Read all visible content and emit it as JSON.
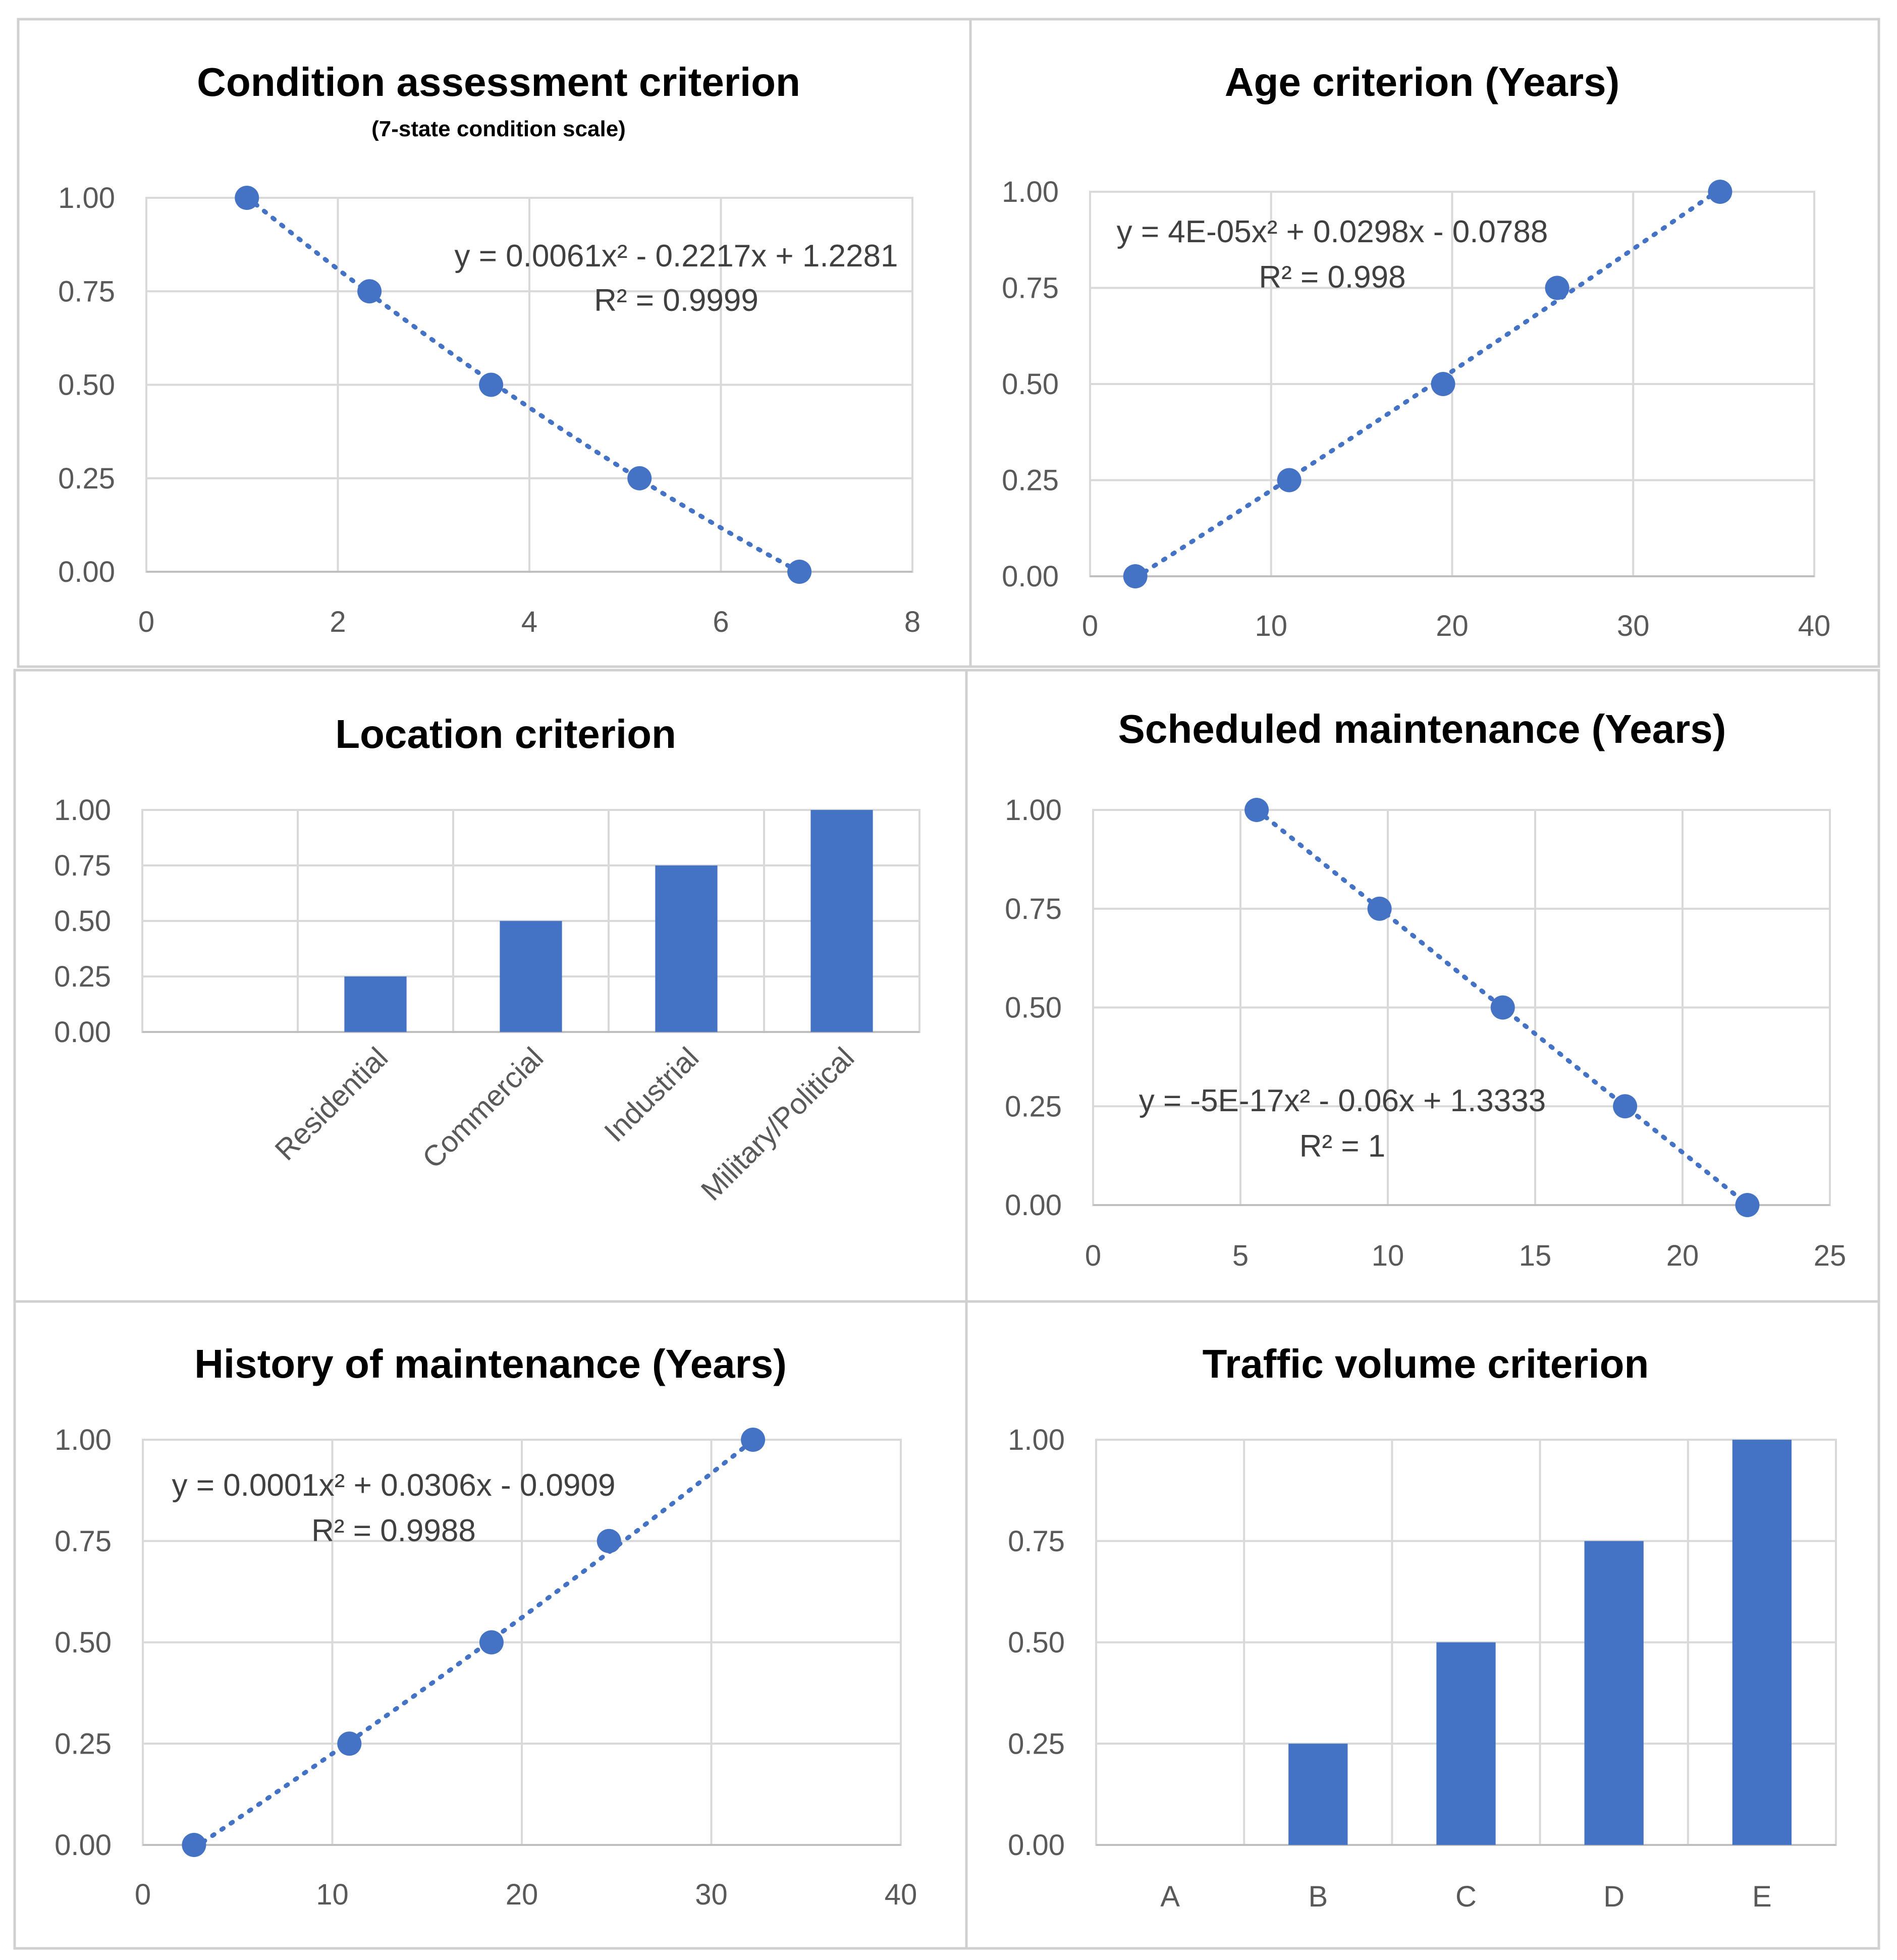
{
  "colors": {
    "series": "#4472c4",
    "grid": "#d9d9d9",
    "text": "#595959",
    "equation": "#404040"
  },
  "chart_data": [
    {
      "id": "condition",
      "type": "scatter",
      "title": "Condition assessment criterion",
      "subtitle": "(7-state condition scale)",
      "x": [
        1.05,
        2.33,
        3.6,
        5.15,
        6.82
      ],
      "y": [
        1.0,
        0.75,
        0.5,
        0.25,
        0.0
      ],
      "xlim": [
        0,
        8
      ],
      "ylim": [
        0,
        1
      ],
      "xticks": [
        "0",
        "2",
        "4",
        "6",
        "8"
      ],
      "yticks": [
        "0.00",
        "0.25",
        "0.50",
        "0.75",
        "1.00"
      ],
      "trendline": {
        "type": "polynomial",
        "coef": [
          0.0061,
          -0.2217,
          1.2281
        ]
      },
      "equation": "y = 0.0061x² - 0.2217x + 1.2281",
      "r2": "R² = 0.9999",
      "grid": true
    },
    {
      "id": "age",
      "type": "scatter",
      "title": "Age criterion (Years)",
      "x": [
        2.5,
        11.0,
        19.5,
        25.8,
        34.8
      ],
      "y": [
        0.0,
        0.25,
        0.5,
        0.75,
        1.0
      ],
      "xlim": [
        0,
        40
      ],
      "ylim": [
        0,
        1
      ],
      "xticks": [
        "0",
        "10",
        "20",
        "30",
        "40"
      ],
      "yticks": [
        "0.00",
        "0.25",
        "0.50",
        "0.75",
        "1.00"
      ],
      "trendline": {
        "type": "polynomial",
        "coef": [
          4e-05,
          0.0298,
          -0.0788
        ]
      },
      "equation": "y = 4E-05x² + 0.0298x - 0.0788",
      "r2": "R² = 0.998",
      "grid": true
    },
    {
      "id": "location",
      "type": "bar",
      "title": "Location criterion",
      "categories": [
        "",
        "Residential",
        "Commercial",
        "Industrial",
        "Military/Political"
      ],
      "values": [
        0,
        0.25,
        0.5,
        0.75,
        1.0
      ],
      "ylim": [
        0,
        1
      ],
      "yticks": [
        "0.00",
        "0.25",
        "0.50",
        "0.75",
        "1.00"
      ],
      "grid": true
    },
    {
      "id": "scheduled",
      "type": "scatter",
      "title": "Scheduled maintenance (Years)",
      "x": [
        5.55,
        9.72,
        13.9,
        18.05,
        22.2
      ],
      "y": [
        1.0,
        0.75,
        0.5,
        0.25,
        0.0
      ],
      "xlim": [
        0,
        25
      ],
      "ylim": [
        0,
        1
      ],
      "xticks": [
        "0",
        "5",
        "10",
        "15",
        "20",
        "25"
      ],
      "yticks": [
        "0.00",
        "0.25",
        "0.50",
        "0.75",
        "1.00"
      ],
      "trendline": {
        "type": "polynomial",
        "coef": [
          0,
          -0.06,
          1.3333
        ]
      },
      "equation": "y = -5E-17x² - 0.06x + 1.3333",
      "r2": "R² = 1",
      "grid": true
    },
    {
      "id": "history",
      "type": "scatter",
      "title": "History of maintenance (Years)",
      "x": [
        2.7,
        10.9,
        18.4,
        24.6,
        32.2
      ],
      "y": [
        0.0,
        0.25,
        0.5,
        0.75,
        1.0
      ],
      "xlim": [
        0,
        40
      ],
      "ylim": [
        0,
        1
      ],
      "xticks": [
        "0",
        "10",
        "20",
        "30",
        "40"
      ],
      "yticks": [
        "0.00",
        "0.25",
        "0.50",
        "0.75",
        "1.00"
      ],
      "trendline": {
        "type": "polynomial",
        "coef": [
          0.0001,
          0.0306,
          -0.0909
        ]
      },
      "equation": "y = 0.0001x² + 0.0306x - 0.0909",
      "r2": "R² = 0.9988",
      "grid": true
    },
    {
      "id": "traffic",
      "type": "bar",
      "title": "Traffic volume criterion",
      "categories": [
        "A",
        "B",
        "C",
        "D",
        "E"
      ],
      "values": [
        0,
        0.25,
        0.5,
        0.75,
        1.0
      ],
      "ylim": [
        0,
        1
      ],
      "yticks": [
        "0.00",
        "0.25",
        "0.50",
        "0.75",
        "1.00"
      ],
      "grid": true
    }
  ]
}
